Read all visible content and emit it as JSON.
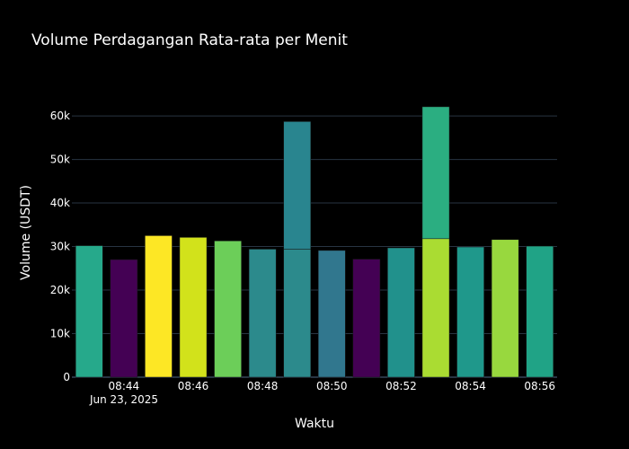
{
  "chart_data": {
    "type": "bar",
    "title": "Volume Perdagangan Rata-rata per Menit",
    "xlabel": "Waktu",
    "ylabel": "Volume (USDT)",
    "ylim": [
      0,
      66000
    ],
    "grid": true,
    "x_tick_labels": [
      "08:44",
      "08:46",
      "08:48",
      "08:50",
      "08:52",
      "08:54",
      "08:56"
    ],
    "x_tick_sublabel": "Jun 23, 2025",
    "y_tick_labels": [
      "0",
      "10k",
      "20k",
      "30k",
      "40k",
      "50k",
      "60k"
    ],
    "y_tick_values": [
      0,
      10000,
      20000,
      30000,
      40000,
      50000,
      60000
    ],
    "categories": [
      "08:43",
      "08:44",
      "08:45",
      "08:46",
      "08:47",
      "08:48",
      "08:49",
      "08:50",
      "08:51",
      "08:52",
      "08:53",
      "08:54",
      "08:55",
      "08:56"
    ],
    "bars": [
      {
        "x": "08:43",
        "values": [
          30200
        ],
        "colors": [
          "#26A98B"
        ]
      },
      {
        "x": "08:44",
        "values": [
          27000
        ],
        "colors": [
          "#440154"
        ]
      },
      {
        "x": "08:45",
        "values": [
          32500
        ],
        "colors": [
          "#FDE725"
        ]
      },
      {
        "x": "08:46",
        "values": [
          32100
        ],
        "colors": [
          "#D2E21B"
        ]
      },
      {
        "x": "08:47",
        "values": [
          31300
        ],
        "colors": [
          "#6CCE59"
        ]
      },
      {
        "x": "08:48",
        "values": [
          29400
        ],
        "colors": [
          "#2C8A8C"
        ]
      },
      {
        "x": "08:49",
        "values": [
          29400,
          29300
        ],
        "colors": [
          "#2C8A8C",
          "#29858F"
        ]
      },
      {
        "x": "08:50",
        "values": [
          29100
        ],
        "colors": [
          "#31778E"
        ]
      },
      {
        "x": "08:51",
        "values": [
          27100
        ],
        "colors": [
          "#440154"
        ]
      },
      {
        "x": "08:52",
        "values": [
          29700
        ],
        "colors": [
          "#21918C"
        ]
      },
      {
        "x": "08:53",
        "values": [
          31800,
          30300
        ],
        "colors": [
          "#AADC32",
          "#2BAE81"
        ]
      },
      {
        "x": "08:54",
        "values": [
          29900
        ],
        "colors": [
          "#1F988B"
        ]
      },
      {
        "x": "08:55",
        "values": [
          31600
        ],
        "colors": [
          "#98D83E"
        ]
      },
      {
        "x": "08:56",
        "values": [
          30100
        ],
        "colors": [
          "#20A386"
        ]
      }
    ]
  }
}
